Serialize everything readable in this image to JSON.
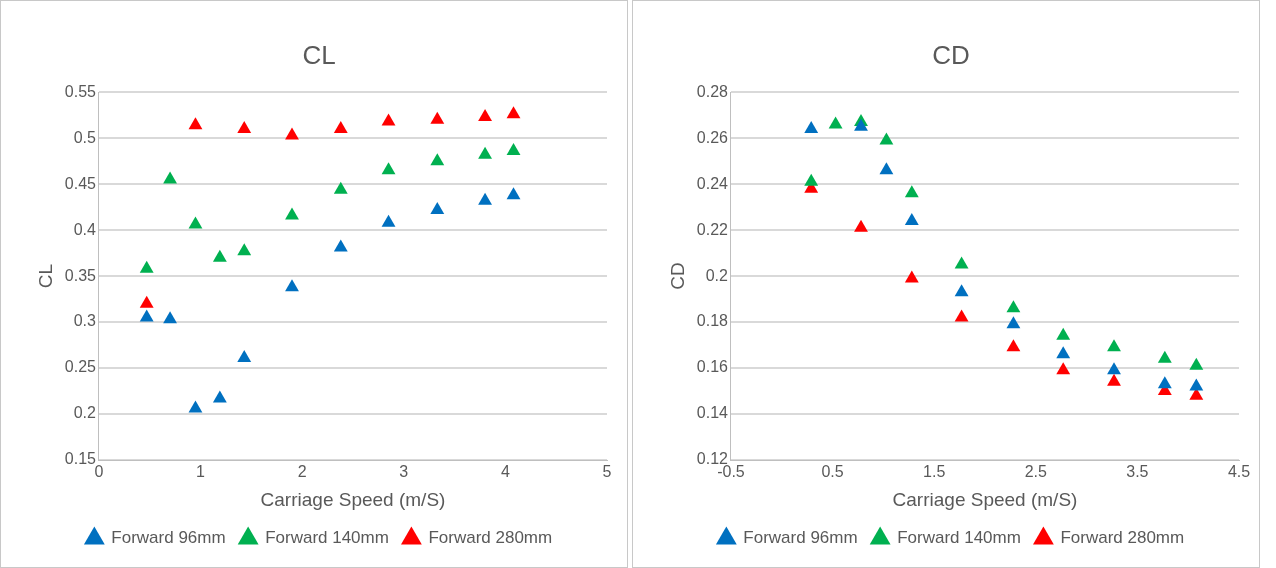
{
  "chart_data": [
    {
      "type": "scatter",
      "title": "CL",
      "xlabel": "Carriage Speed (m/S)",
      "ylabel": "CL",
      "xlim": [
        0,
        5
      ],
      "xticks": [
        0,
        1,
        2,
        3,
        4,
        5
      ],
      "ylim": [
        0.15,
        0.55
      ],
      "yticks": [
        0.15,
        0.2,
        0.25,
        0.3,
        0.35,
        0.4,
        0.45,
        0.5,
        0.55
      ],
      "grid": "y",
      "legend": "bottom",
      "marker": "triangle",
      "series": [
        {
          "name": "Forward 96mm",
          "color": "#0070c0",
          "x": [
            0.47,
            0.7,
            0.95,
            1.19,
            1.43,
            1.9,
            2.38,
            2.85,
            3.33,
            3.8,
            4.08
          ],
          "values": [
            0.305,
            0.303,
            0.206,
            0.217,
            0.261,
            0.338,
            0.381,
            0.408,
            0.422,
            0.432,
            0.438
          ]
        },
        {
          "name": "Forward 140mm",
          "color": "#00b050",
          "x": [
            0.47,
            0.7,
            0.95,
            1.19,
            1.43,
            1.9,
            2.38,
            2.85,
            3.33,
            3.8,
            4.08
          ],
          "values": [
            0.358,
            0.455,
            0.406,
            0.37,
            0.377,
            0.416,
            0.444,
            0.465,
            0.475,
            0.482,
            0.486
          ]
        },
        {
          "name": "Forward 280mm",
          "color": "#ff0000",
          "x": [
            0.47,
            0.95,
            1.43,
            1.9,
            2.38,
            2.85,
            3.33,
            3.8,
            4.08
          ],
          "values": [
            0.32,
            0.514,
            0.51,
            0.503,
            0.51,
            0.518,
            0.52,
            0.523,
            0.526
          ]
        }
      ]
    },
    {
      "type": "scatter",
      "title": "CD",
      "xlabel": "Carriage Speed (m/S)",
      "ylabel": "CD",
      "xlim": [
        -0.5,
        4.5
      ],
      "xticks": [
        -0.5,
        0.5,
        1.5,
        2.5,
        3.5,
        4.5
      ],
      "ylim": [
        0.12,
        0.28
      ],
      "yticks": [
        0.12,
        0.14,
        0.16,
        0.18,
        0.2,
        0.22,
        0.24,
        0.26,
        0.28
      ],
      "grid": "y",
      "legend": "bottom",
      "marker": "triangle",
      "series": [
        {
          "name": "Forward 96mm",
          "color": "#0070c0",
          "x": [
            0.29,
            0.78,
            1.03,
            1.28,
            1.77,
            2.28,
            2.77,
            3.27,
            3.77,
            4.08
          ],
          "values": [
            0.264,
            0.265,
            0.246,
            0.224,
            0.193,
            0.179,
            0.166,
            0.159,
            0.153,
            0.152
          ]
        },
        {
          "name": "Forward 140mm",
          "color": "#00b050",
          "x": [
            0.29,
            0.53,
            0.78,
            1.03,
            1.28,
            1.77,
            2.28,
            2.77,
            3.27,
            3.77,
            4.08
          ],
          "values": [
            0.241,
            0.266,
            0.267,
            0.259,
            0.236,
            0.205,
            0.186,
            0.174,
            0.169,
            0.164,
            0.161
          ]
        },
        {
          "name": "Forward 280mm",
          "color": "#ff0000",
          "x": [
            0.29,
            0.78,
            1.28,
            1.77,
            2.28,
            2.77,
            3.27,
            3.77,
            4.08
          ],
          "values": [
            0.238,
            0.221,
            0.199,
            0.182,
            0.169,
            0.159,
            0.154,
            0.15,
            0.148
          ]
        }
      ]
    }
  ]
}
